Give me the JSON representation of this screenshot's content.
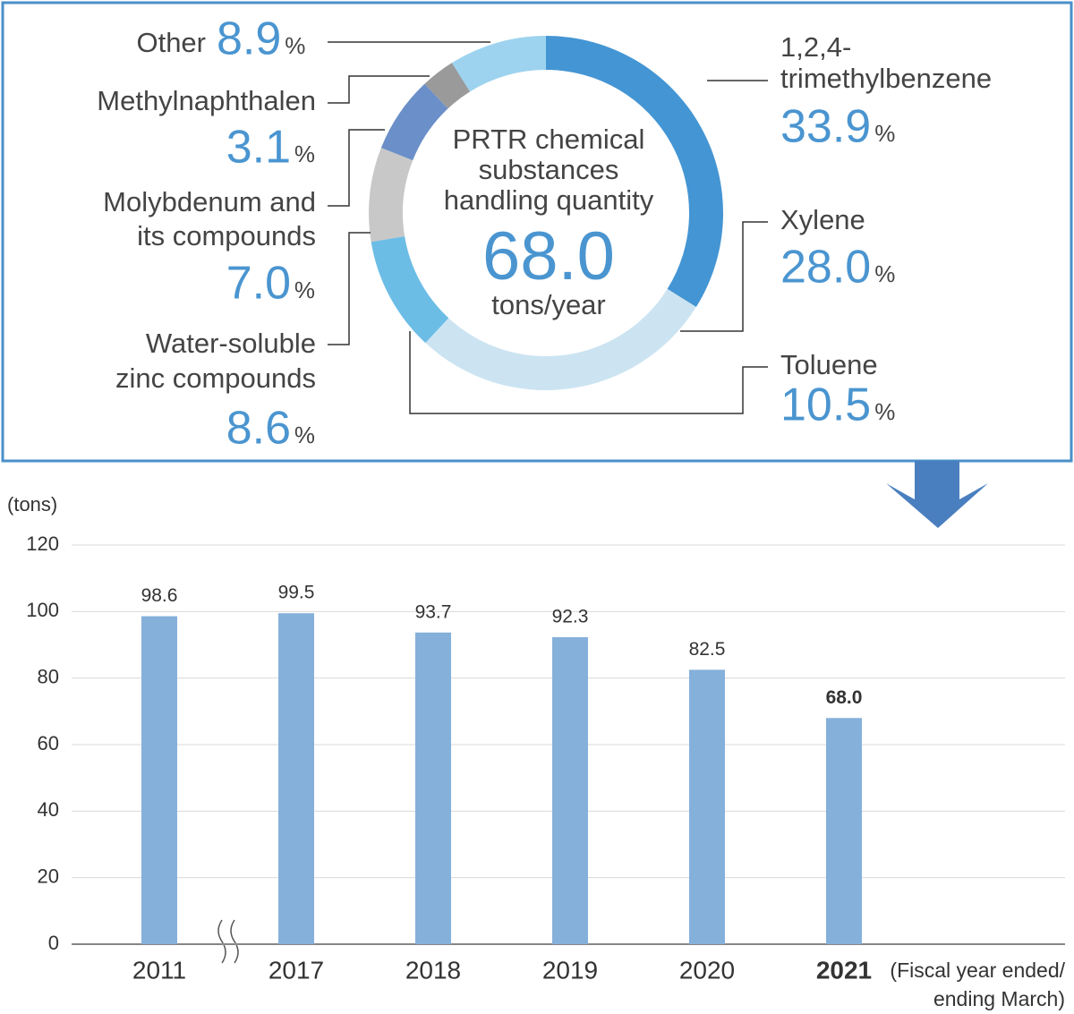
{
  "chart_data": [
    {
      "type": "donut",
      "center_title": [
        "PRTR chemical",
        "substances",
        "handling quantity"
      ],
      "total": {
        "value": 68.0,
        "label": "68.0"
      },
      "total_unit": "tons/year",
      "unit": "%",
      "categories": [
        [
          "1,2,4-",
          "trimethylbenzene"
        ],
        [
          "Xylene"
        ],
        [
          "Toluene"
        ],
        [
          "Water-soluble",
          "zinc compounds"
        ],
        [
          "Molybdenum and",
          "its compounds"
        ],
        [
          "Methylnaphthalen"
        ],
        [
          "Other"
        ]
      ],
      "values": [
        33.9,
        28.0,
        10.5,
        8.6,
        7.0,
        3.1,
        8.9
      ],
      "value_labels": [
        "33.9",
        "28.0",
        "10.5",
        "8.6",
        "7.0",
        "3.1",
        "8.9"
      ],
      "colors": [
        "#4495d3",
        "#cce4f2",
        "#6cbde6",
        "#c8c8c8",
        "#6b8fc8",
        "#9a9a9a",
        "#9dd3ef"
      ]
    },
    {
      "type": "bar",
      "y_label": "(tons)",
      "x_label": [
        "(Fiscal year ended/",
        "ending March)"
      ],
      "categories": [
        "2011",
        "2017",
        "2018",
        "2019",
        "2020",
        "2021"
      ],
      "values": [
        98.6,
        99.5,
        93.7,
        92.3,
        82.5,
        68.0
      ],
      "value_labels": [
        "98.6",
        "99.5",
        "93.7",
        "92.3",
        "82.5",
        "68.0"
      ],
      "highlight_category": "2021",
      "color": "#85b0da",
      "ylim": [
        0,
        120
      ],
      "yticks": [
        0,
        20,
        40,
        60,
        80,
        100,
        120
      ],
      "grid": true
    }
  ]
}
